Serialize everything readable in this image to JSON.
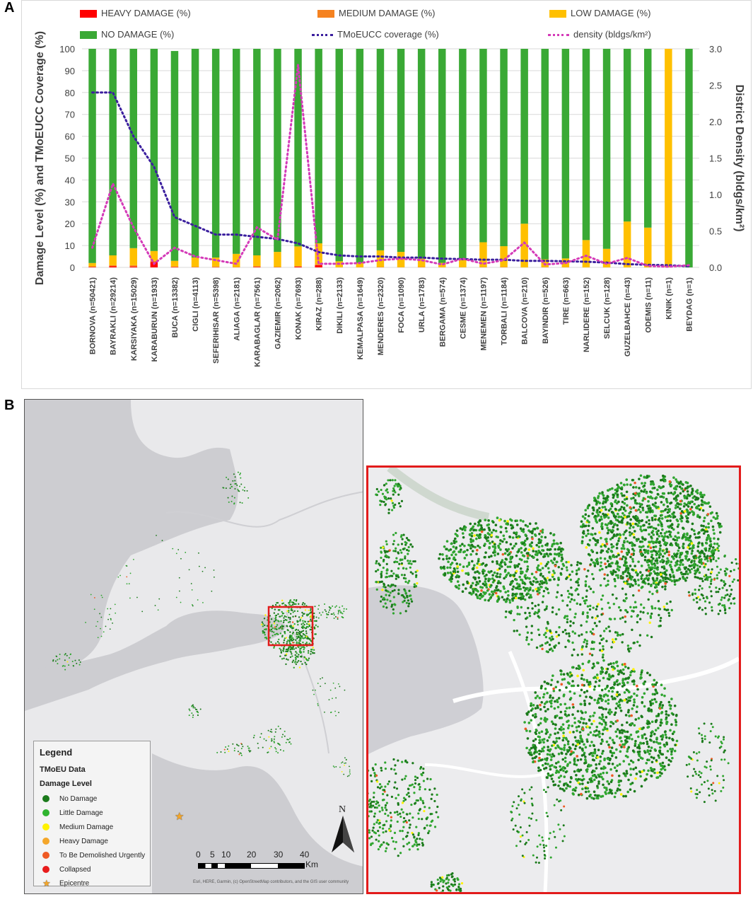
{
  "panels": {
    "a": "A",
    "b": "B"
  },
  "chart_data": {
    "type": "bar",
    "stacked": true,
    "ylabel": "Damage Level (%) and TMoEUCC Coverage (%)",
    "ylabel_right": "District Density (bldgs/km²)",
    "ylim": [
      0,
      100
    ],
    "ylim_right": [
      0,
      3.0
    ],
    "yticks": [
      "0",
      "10",
      "20",
      "30",
      "40",
      "50",
      "60",
      "70",
      "80",
      "90",
      "100"
    ],
    "yticks_right": [
      "0.0",
      "0.5",
      "1.0",
      "1.5",
      "2.0",
      "2.5",
      "3.0"
    ],
    "grid": true,
    "legend_position": "top",
    "categories": [
      "BORNOVA (n=50421)",
      "BAYRAKLI (n=29214)",
      "KARSIYAKA (n=15029)",
      "KARABURUN (n=1933)",
      "BUCA (n=13382)",
      "CIGLI (n=4113)",
      "SEFERIHISAR (n=5398)",
      "ALIAGA (n=2181)",
      "KARABAGLAR (n=7561)",
      "GAZIEMIR (n=2062)",
      "KONAK (n=7693)",
      "KIRAZ (n=288)",
      "DIKILI (n=2133)",
      "KEMALPASA (n=1649)",
      "MENDERES (n=2320)",
      "FOCA (n=1090)",
      "URLA (n=1783)",
      "BERGAMA (n=574)",
      "CESME (n=1374)",
      "MENEMEN (n=1197)",
      "TORBALI (n=1184)",
      "BALCOVA (n=210)",
      "BAYINDIR (n=526)",
      "TIRE (n=663)",
      "NARLIDERE (n=152)",
      "SELCUK (n=128)",
      "GUZELBAHCE (n=43)",
      "ODEMIS (n=11)",
      "KINIK (n=1)",
      "BEYDAG (n=1)"
    ],
    "series": [
      {
        "name": "HEAVY DAMAGE (%)",
        "color": "#ff0000",
        "values": [
          0.2,
          0.5,
          0.4,
          2.5,
          0.2,
          0.1,
          0.1,
          0,
          0.2,
          0,
          0.3,
          1,
          0,
          0,
          0,
          0,
          0,
          0,
          0,
          0,
          0,
          0,
          0,
          0,
          0,
          0,
          0,
          0,
          0,
          0
        ]
      },
      {
        "name": "MEDIUM DAMAGE (%)",
        "color": "#f58220",
        "values": [
          0.3,
          0.5,
          0.6,
          0.5,
          0.2,
          0.1,
          0.3,
          0.2,
          0.4,
          0.3,
          0.3,
          0.5,
          0.1,
          0.1,
          0.2,
          0.1,
          0.2,
          0.1,
          0.1,
          0.2,
          0.2,
          0,
          0.2,
          0.1,
          0,
          0,
          0,
          0,
          0,
          0
        ]
      },
      {
        "name": "LOW DAMAGE (%)",
        "color": "#ffc000",
        "values": [
          1.5,
          4.5,
          7.8,
          4.5,
          2.6,
          4.3,
          4.1,
          6,
          4.9,
          6.8,
          9,
          9.5,
          2.7,
          2,
          7.6,
          7,
          3.8,
          2,
          3.9,
          11.3,
          9.5,
          20,
          3.5,
          4,
          12.5,
          8.5,
          21,
          18.2,
          100,
          0
        ]
      },
      {
        "name": "NO DAMAGE (%)",
        "color": "#3aa935",
        "values": [
          98,
          94.5,
          91.2,
          92.5,
          96,
          95.5,
          95.5,
          93.8,
          94.5,
          92.9,
          90.4,
          89,
          97.2,
          97.9,
          92.2,
          92.9,
          96,
          97.9,
          96,
          88.5,
          90.3,
          80,
          96.3,
          95.9,
          87.5,
          91.5,
          79,
          81.8,
          0,
          100
        ]
      }
    ],
    "lines": [
      {
        "name": "TMoEUCC coverage (%)",
        "color": "#3b1f9e",
        "axis": "left",
        "values": [
          80,
          80,
          60,
          46,
          23,
          19,
          15,
          15,
          14,
          13,
          11,
          7,
          5.5,
          5,
          5,
          4.5,
          4.5,
          4,
          3.8,
          3.5,
          3.5,
          3,
          3,
          2.8,
          2.6,
          2.2,
          1.5,
          1.2,
          1,
          0.5
        ]
      },
      {
        "name": "density (bldgs/km²)",
        "color": "#d43ab8",
        "axis": "right",
        "values": [
          0.27,
          1.15,
          0.55,
          0.05,
          0.27,
          0.15,
          0.1,
          0.05,
          0.55,
          0.38,
          2.78,
          0.05,
          0.05,
          0.06,
          0.1,
          0.12,
          0.1,
          0.04,
          0.12,
          0.05,
          0.1,
          0.34,
          0.04,
          0.06,
          0.16,
          0.05,
          0.13,
          0.02,
          0.01,
          0.03
        ]
      }
    ]
  },
  "map": {
    "legend": {
      "title": "Legend",
      "subtitle": "TMoEU Data",
      "heading": "Damage Level",
      "items": [
        {
          "label": "No Damage",
          "color": "#1b7a1b"
        },
        {
          "label": "Little Damage",
          "color": "#2fb42f"
        },
        {
          "label": "Medium Damage",
          "color": "#fff200"
        },
        {
          "label": "Heavy Damage",
          "color": "#f4a62a"
        },
        {
          "label": "To Be Demolished Urgently",
          "color": "#ef5a24"
        },
        {
          "label": "Collapsed",
          "color": "#e81c1c"
        }
      ],
      "epicentre_label": "Epicentre"
    },
    "scale": {
      "ticks": [
        "0",
        "5",
        "10",
        "20",
        "30",
        "40"
      ],
      "unit": "Km"
    },
    "north": "N",
    "attribution": "Esri, HERE, Garmin, (c) OpenStreetMap contributors, and the GIS user community"
  }
}
